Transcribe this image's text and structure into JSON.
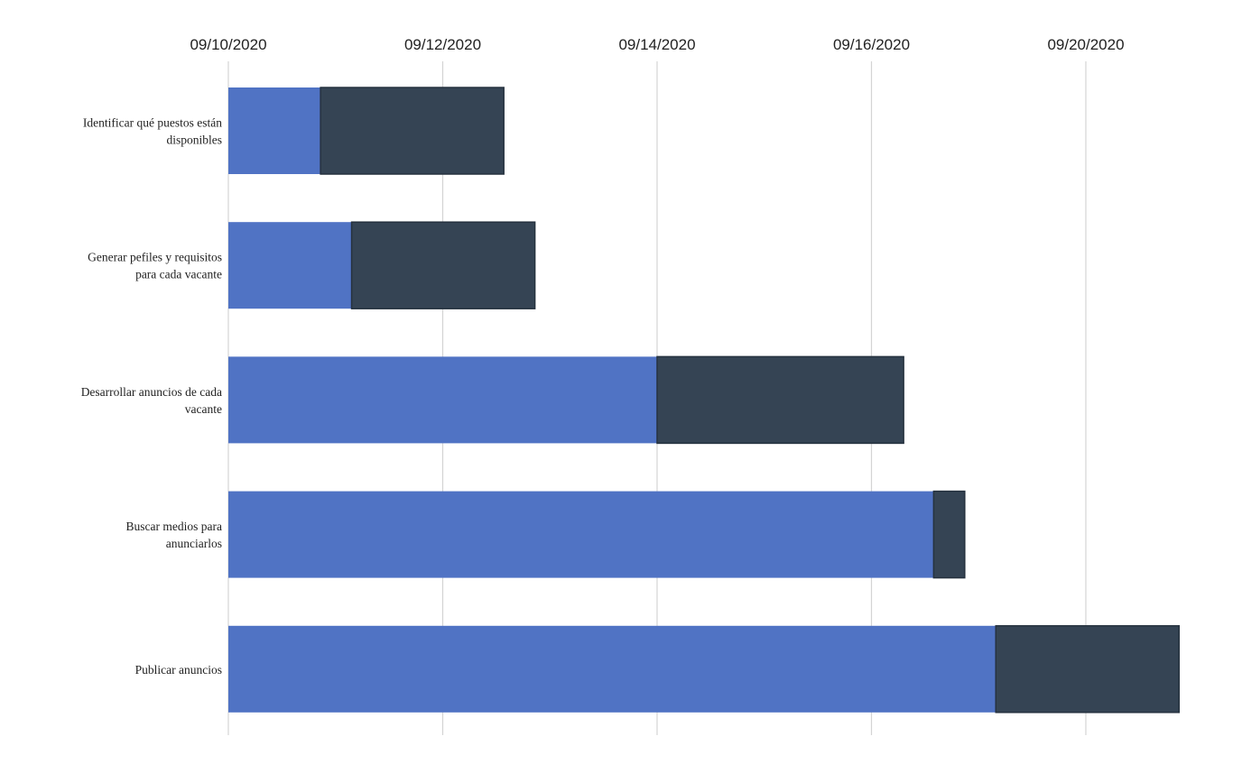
{
  "chart_data": {
    "type": "bar",
    "orientation": "horizontal",
    "stacked": true,
    "title": "",
    "xlabel": "",
    "ylabel": "",
    "x_ticks": [
      "09/10/2020",
      "09/12/2020",
      "09/14/2020",
      "09/16/2020",
      "09/20/2020"
    ],
    "x_axis_position": "top",
    "grid": "vertical",
    "legend": "none",
    "categories": [
      [
        "Identificar qué puestos están",
        "disponibles"
      ],
      [
        "Generar pefiles y requisitos",
        "para cada vacante"
      ],
      [
        "Desarrollar anuncios de cada",
        "vacante"
      ],
      [
        "Buscar medios para",
        "anunciarlos"
      ],
      [
        "Publicar anuncios"
      ]
    ],
    "series": [
      {
        "color": "#5073c4",
        "values": [
          0.86,
          1.15,
          4.0,
          6.58,
          7.16
        ]
      },
      {
        "color": "#354454",
        "values": [
          1.71,
          1.71,
          2.3,
          0.29,
          1.71
        ]
      }
    ]
  }
}
